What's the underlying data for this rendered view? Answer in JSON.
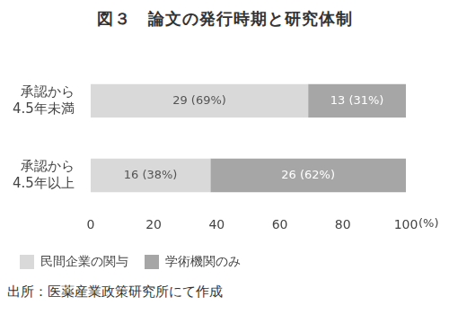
{
  "chart_data": {
    "type": "bar",
    "title": "図３　論文の発行時期と研究体制",
    "source": "出所：医薬産業政策研究所にて作成",
    "x_label": "(%)",
    "orientation": "horizontal",
    "stacked": true,
    "data_labels": true,
    "grid": false,
    "legend": "bottom-left",
    "categories": [
      "承認から\n4.5年未満",
      "承認から\n4.5年以上"
    ],
    "series": [
      {
        "name": "民間企業の関与",
        "color": "#d9d9d9",
        "values": [
          69,
          38
        ],
        "value_labels": [
          "29 (69%)",
          "16 (38%)"
        ]
      },
      {
        "name": "学術機関のみ",
        "color": "#a6a6a6",
        "values": [
          31,
          62
        ],
        "value_labels": [
          "13 (31%)",
          "26 (62%)"
        ]
      }
    ],
    "xlim": [
      0,
      100
    ],
    "xticks": [
      0,
      20,
      40,
      60,
      80,
      100
    ]
  }
}
